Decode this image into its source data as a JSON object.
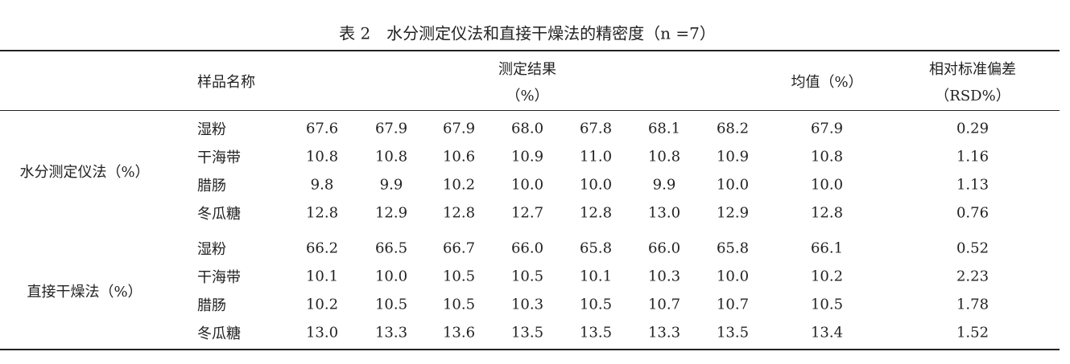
{
  "title": "表 2　水分测定仪法和直接干燥法的精密度（n =7）",
  "header": {
    "sample": "样品名称",
    "result": "测定结果",
    "result_unit": "（%）",
    "mean": "均值（%）",
    "rsd": "相对标准偏差",
    "rsd_unit": "（RSD%）"
  },
  "groups": [
    {
      "method": "水分测定仪法（%）",
      "rows": [
        {
          "name": "湿粉",
          "results": [
            "67.6",
            "67.9",
            "67.9",
            "68.0",
            "67.8",
            "68.1",
            "68.2"
          ],
          "mean": "67.9",
          "rsd": "0.29"
        },
        {
          "name": "干海带",
          "results": [
            "10.8",
            "10.8",
            "10.6",
            "10.9",
            "11.0",
            "10.8",
            "10.9"
          ],
          "mean": "10.8",
          "rsd": "1.16"
        },
        {
          "name": "腊肠",
          "results": [
            "9.8",
            "9.9",
            "10.2",
            "10.0",
            "10.0",
            "9.9",
            "10.0"
          ],
          "mean": "10.0",
          "rsd": "1.13"
        },
        {
          "name": "冬瓜糖",
          "results": [
            "12.8",
            "12.9",
            "12.8",
            "12.7",
            "12.8",
            "13.0",
            "12.9"
          ],
          "mean": "12.8",
          "rsd": "0.76"
        }
      ]
    },
    {
      "method": "直接干燥法（%）",
      "rows": [
        {
          "name": "湿粉",
          "results": [
            "66.2",
            "66.5",
            "66.7",
            "66.0",
            "65.8",
            "66.0",
            "65.8"
          ],
          "mean": "66.1",
          "rsd": "0.52"
        },
        {
          "name": "干海带",
          "results": [
            "10.1",
            "10.0",
            "10.5",
            "10.5",
            "10.1",
            "10.3",
            "10.0"
          ],
          "mean": "10.2",
          "rsd": "2.23"
        },
        {
          "name": "腊肠",
          "results": [
            "10.2",
            "10.5",
            "10.5",
            "10.3",
            "10.5",
            "10.7",
            "10.7"
          ],
          "mean": "10.5",
          "rsd": "1.78"
        },
        {
          "name": "冬瓜糖",
          "results": [
            "13.0",
            "13.3",
            "13.6",
            "13.5",
            "13.5",
            "13.3",
            "13.5"
          ],
          "mean": "13.4",
          "rsd": "1.52"
        }
      ]
    }
  ]
}
